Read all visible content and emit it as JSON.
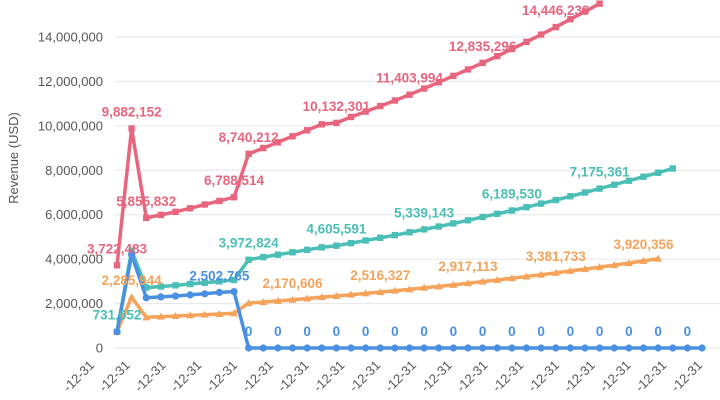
{
  "chart_data": {
    "type": "line",
    "ylabel": "Revenue (USD)",
    "ylim": [
      0,
      15500000
    ],
    "y_ticks": [
      {
        "value": 0,
        "label": "0"
      },
      {
        "value": 2000000,
        "label": "2,000,000"
      },
      {
        "value": 4000000,
        "label": "4,000,000"
      },
      {
        "value": 6000000,
        "label": "6,000,000"
      },
      {
        "value": 8000000,
        "label": "8,000,000"
      },
      {
        "value": 10000000,
        "label": "10,000,000"
      },
      {
        "value": 12000000,
        "label": "12,000,000"
      },
      {
        "value": 14000000,
        "label": "14,000,000"
      }
    ],
    "x_tick_labels": [
      "-12-31",
      "-12-31",
      "-12-31",
      "-12-31",
      "-12-31",
      "-12-31",
      "-12-31",
      "-12-31",
      "-12-31",
      "-12-31",
      "-12-31",
      "-12-31",
      "-12-31",
      "-12-31",
      "-12-31",
      "-12-31",
      "-12-31",
      "-12-31"
    ],
    "grid": true,
    "series": [
      {
        "color": "#e8657e",
        "marker": "square",
        "values": [
          3722483,
          9882152,
          5855832,
          5990000,
          6130000,
          6290000,
          6460000,
          6620000,
          6788514,
          8740212,
          9000000,
          9260000,
          9530000,
          9800000,
          10070000,
          10132301,
          10400000,
          10640000,
          10890000,
          11140000,
          11403994,
          11680000,
          11960000,
          12250000,
          12540000,
          12835296,
          13140000,
          13460000,
          13780000,
          14110000,
          14446239,
          14800000,
          15150000,
          15500000
        ]
      },
      {
        "color": "#4bbfb5",
        "marker": "square",
        "values": [
          731652,
          4380000,
          2720000,
          2770000,
          2820000,
          2880000,
          2940000,
          3000000,
          3060000,
          3972824,
          4090000,
          4200000,
          4310000,
          4420000,
          4530000,
          4605591,
          4720000,
          4840000,
          4960000,
          5080000,
          5210000,
          5339143,
          5470000,
          5610000,
          5750000,
          5900000,
          6040000,
          6189530,
          6340000,
          6500000,
          6660000,
          6830000,
          7000000,
          7175361,
          7350000,
          7530000,
          7710000,
          7890000,
          8080000
        ]
      },
      {
        "color": "#f5a35a",
        "marker": "triangle",
        "values": [
          731652,
          2285944,
          1380000,
          1410000,
          1440000,
          1470000,
          1500000,
          1530000,
          1560000,
          2020000,
          2070000,
          2120000,
          2170606,
          2230000,
          2290000,
          2340000,
          2400000,
          2460000,
          2516327,
          2580000,
          2640000,
          2710000,
          2770000,
          2840000,
          2917113,
          2990000,
          3060000,
          3140000,
          3220000,
          3300000,
          3381733,
          3470000,
          3550000,
          3640000,
          3730000,
          3820000,
          3920356,
          4020000
        ]
      },
      {
        "color": "#4a90e2",
        "marker": "circle",
        "values": [
          731652,
          4200000,
          2260000,
          2300000,
          2340000,
          2390000,
          2440000,
          2502765,
          2540000,
          0,
          0,
          0,
          0,
          0,
          0,
          0,
          0,
          0,
          0,
          0,
          0,
          0,
          0,
          0,
          0,
          0,
          0,
          0,
          0,
          0,
          0,
          0,
          0,
          0,
          0,
          0,
          0,
          0,
          0,
          0,
          0
        ]
      }
    ],
    "annotations": [
      {
        "series": 0,
        "index": 0,
        "text": "3,722,483"
      },
      {
        "series": 0,
        "index": 1,
        "text": "9,882,152"
      },
      {
        "series": 0,
        "index": 2,
        "text": "5,855,832"
      },
      {
        "series": 0,
        "index": 8,
        "text": "6,788,514"
      },
      {
        "series": 0,
        "index": 9,
        "text": "8,740,212"
      },
      {
        "series": 0,
        "index": 15,
        "text": "10,132,301"
      },
      {
        "series": 0,
        "index": 20,
        "text": "11,403,994"
      },
      {
        "series": 0,
        "index": 25,
        "text": "12,835,296"
      },
      {
        "series": 0,
        "index": 30,
        "text": "14,446,239"
      },
      {
        "series": 1,
        "index": 0,
        "text": "731,652"
      },
      {
        "series": 1,
        "index": 9,
        "text": "3,972,824"
      },
      {
        "series": 1,
        "index": 15,
        "text": "4,605,591"
      },
      {
        "series": 1,
        "index": 21,
        "text": "5,339,143"
      },
      {
        "series": 1,
        "index": 27,
        "text": "6,189,530"
      },
      {
        "series": 1,
        "index": 33,
        "text": "7,175,361"
      },
      {
        "series": 2,
        "index": 1,
        "text": "2,285,944"
      },
      {
        "series": 2,
        "index": 12,
        "text": "2,170,606"
      },
      {
        "series": 2,
        "index": 18,
        "text": "2,516,327"
      },
      {
        "series": 2,
        "index": 24,
        "text": "2,917,113"
      },
      {
        "series": 2,
        "index": 30,
        "text": "3,381,733"
      },
      {
        "series": 2,
        "index": 36,
        "text": "3,920,356"
      },
      {
        "series": 3,
        "index": 7,
        "text": "2,502,765"
      },
      {
        "series": 3,
        "index": 9,
        "text": "0"
      },
      {
        "series": 3,
        "index": 11,
        "text": "0"
      },
      {
        "series": 3,
        "index": 13,
        "text": "0"
      },
      {
        "series": 3,
        "index": 15,
        "text": "0"
      },
      {
        "series": 3,
        "index": 17,
        "text": "0"
      },
      {
        "series": 3,
        "index": 19,
        "text": "0"
      },
      {
        "series": 3,
        "index": 21,
        "text": "0"
      },
      {
        "series": 3,
        "index": 23,
        "text": "0"
      },
      {
        "series": 3,
        "index": 25,
        "text": "0"
      },
      {
        "series": 3,
        "index": 27,
        "text": "0"
      },
      {
        "series": 3,
        "index": 29,
        "text": "0"
      },
      {
        "series": 3,
        "index": 31,
        "text": "0"
      },
      {
        "series": 3,
        "index": 33,
        "text": "0"
      },
      {
        "series": 3,
        "index": 35,
        "text": "0"
      },
      {
        "series": 3,
        "index": 37,
        "text": "0"
      },
      {
        "series": 3,
        "index": 39,
        "text": "0"
      }
    ]
  }
}
